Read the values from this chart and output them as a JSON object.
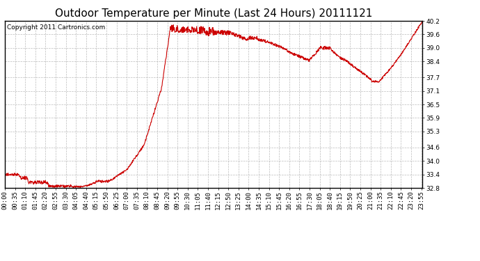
{
  "title": "Outdoor Temperature per Minute (Last 24 Hours) 20111121",
  "copyright": "Copyright 2011 Cartronics.com",
  "line_color": "#cc0000",
  "bg_color": "#ffffff",
  "plot_bg_color": "#ffffff",
  "grid_color": "#aaaaaa",
  "grid_style": "--",
  "ylim": [
    32.8,
    40.2
  ],
  "yticks": [
    32.8,
    33.4,
    34.0,
    34.6,
    35.3,
    35.9,
    36.5,
    37.1,
    37.7,
    38.4,
    39.0,
    39.6,
    40.2
  ],
  "xtick_step_minutes": 35,
  "xlabel": "",
  "ylabel": "",
  "title_fontsize": 11,
  "tick_fontsize": 6.5,
  "copyright_fontsize": 6.5,
  "line_width": 0.8
}
